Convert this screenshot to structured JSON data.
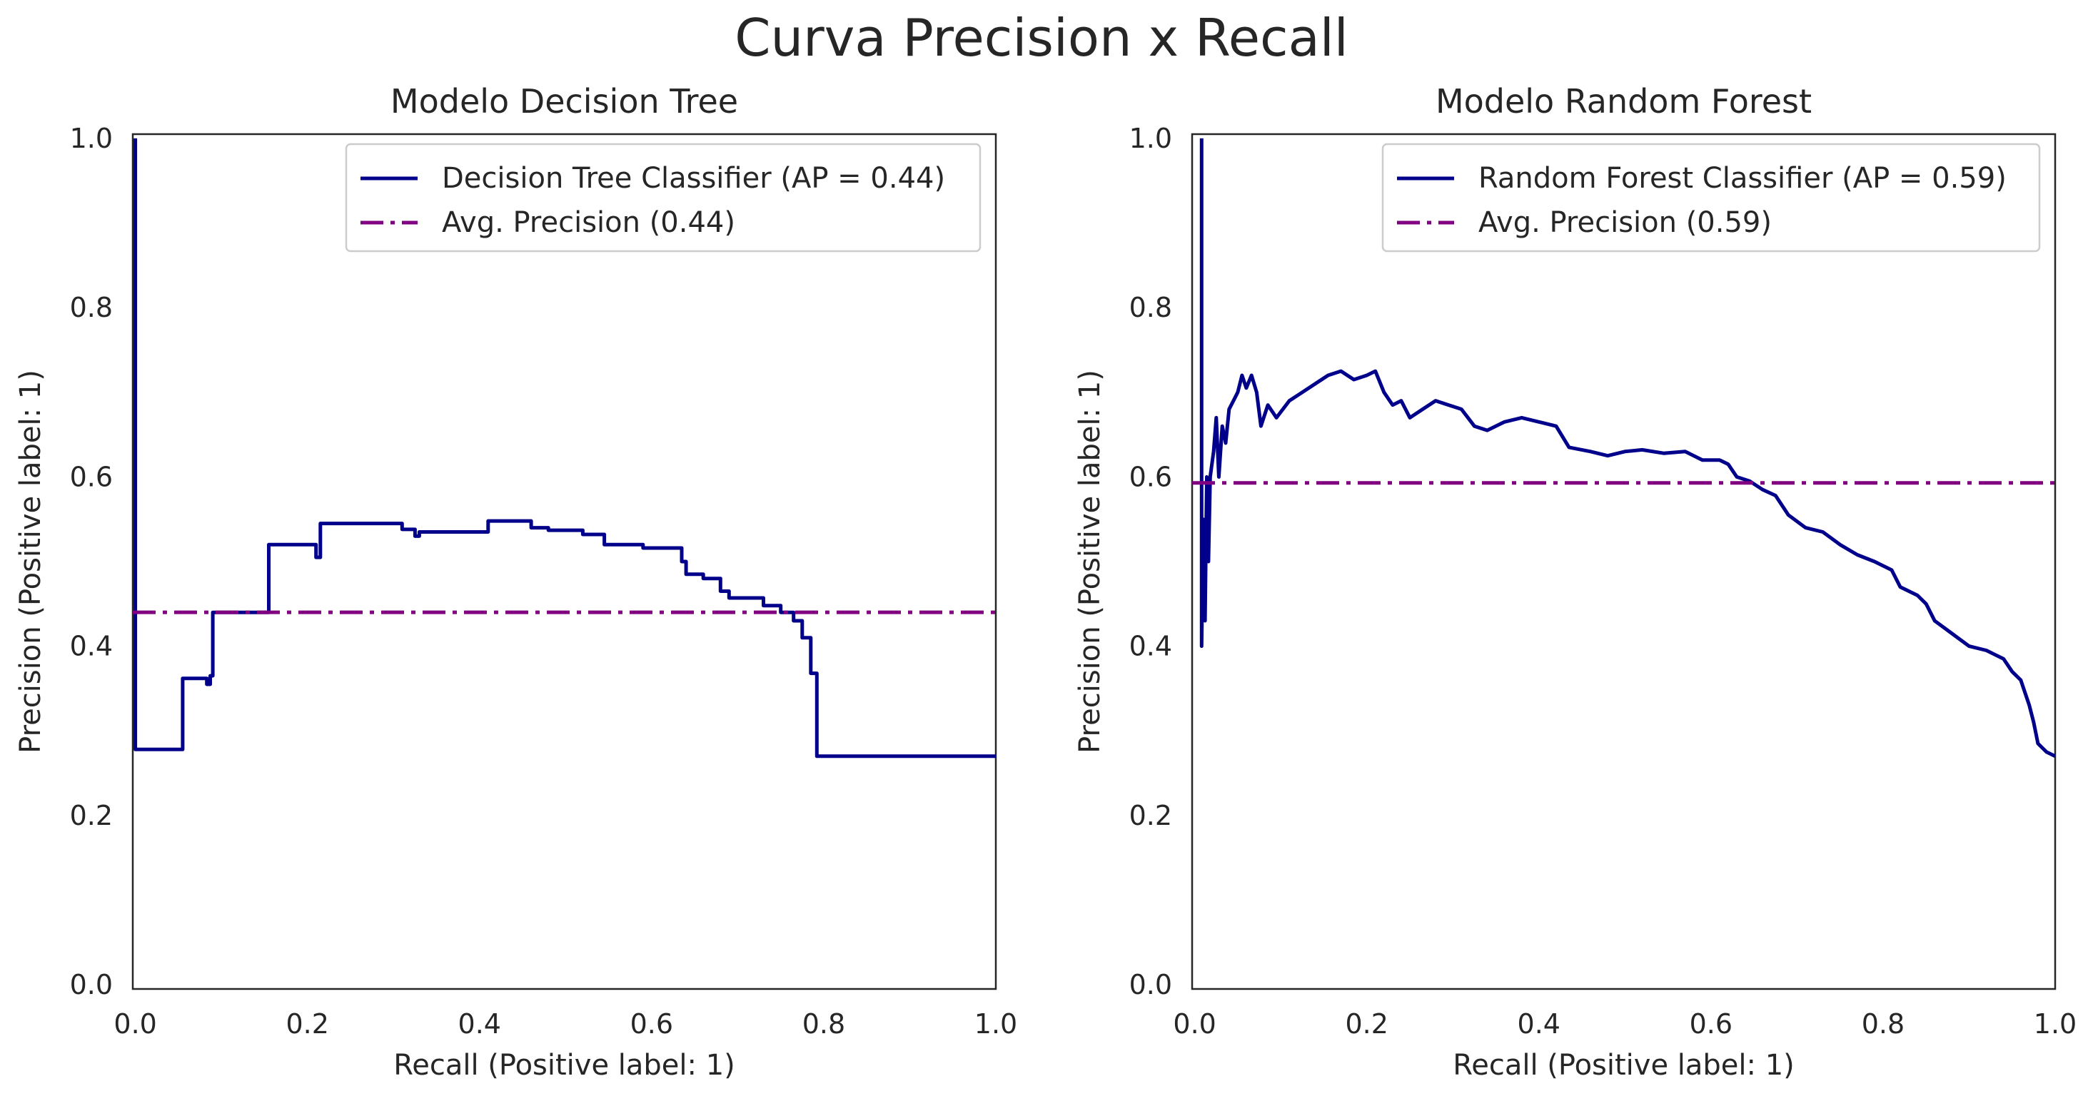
{
  "figure": {
    "suptitle": "Curva Precision x Recall",
    "colors": {
      "curve": "#00008b",
      "avg_line": "#800080",
      "text": "#262626",
      "axes_edge": "#262626",
      "background": "#ffffff"
    }
  },
  "chart_data": [
    {
      "type": "line",
      "title": "Modelo Decision Tree",
      "xlabel": "Recall (Positive label: 1)",
      "ylabel": "Precision (Positive label: 1)",
      "xlim": [
        -0.003,
        1.0
      ],
      "ylim": [
        -0.005,
        1.005
      ],
      "xticks": [
        "0.0",
        "0.2",
        "0.4",
        "0.6",
        "0.8",
        "1.0"
      ],
      "yticks": [
        "0.0",
        "0.2",
        "0.4",
        "0.6",
        "0.8",
        "1.0"
      ],
      "grid": false,
      "legend_position": "upper right",
      "series": [
        {
          "name": "Decision Tree Classifier (AP = 0.44)",
          "step": true,
          "points": [
            [
              0.0,
              1.0
            ],
            [
              0.0,
              0.278
            ],
            [
              0.055,
              0.278
            ],
            [
              0.055,
              0.362
            ],
            [
              0.083,
              0.362
            ],
            [
              0.083,
              0.355
            ],
            [
              0.087,
              0.355
            ],
            [
              0.087,
              0.365
            ],
            [
              0.09,
              0.365
            ],
            [
              0.09,
              0.44
            ],
            [
              0.155,
              0.44
            ],
            [
              0.155,
              0.52
            ],
            [
              0.21,
              0.52
            ],
            [
              0.21,
              0.505
            ],
            [
              0.215,
              0.505
            ],
            [
              0.215,
              0.545
            ],
            [
              0.31,
              0.545
            ],
            [
              0.31,
              0.538
            ],
            [
              0.325,
              0.538
            ],
            [
              0.325,
              0.53
            ],
            [
              0.33,
              0.53
            ],
            [
              0.33,
              0.535
            ],
            [
              0.41,
              0.535
            ],
            [
              0.41,
              0.548
            ],
            [
              0.46,
              0.548
            ],
            [
              0.46,
              0.54
            ],
            [
              0.48,
              0.54
            ],
            [
              0.48,
              0.537
            ],
            [
              0.52,
              0.537
            ],
            [
              0.52,
              0.532
            ],
            [
              0.545,
              0.532
            ],
            [
              0.545,
              0.52
            ],
            [
              0.59,
              0.52
            ],
            [
              0.59,
              0.516
            ],
            [
              0.635,
              0.516
            ],
            [
              0.635,
              0.5
            ],
            [
              0.64,
              0.5
            ],
            [
              0.64,
              0.485
            ],
            [
              0.66,
              0.485
            ],
            [
              0.66,
              0.48
            ],
            [
              0.68,
              0.48
            ],
            [
              0.68,
              0.465
            ],
            [
              0.69,
              0.465
            ],
            [
              0.69,
              0.457
            ],
            [
              0.73,
              0.457
            ],
            [
              0.73,
              0.448
            ],
            [
              0.75,
              0.448
            ],
            [
              0.75,
              0.44
            ],
            [
              0.765,
              0.44
            ],
            [
              0.765,
              0.43
            ],
            [
              0.775,
              0.43
            ],
            [
              0.775,
              0.41
            ],
            [
              0.785,
              0.41
            ],
            [
              0.785,
              0.368
            ],
            [
              0.792,
              0.368
            ],
            [
              0.792,
              0.27
            ],
            [
              1.0,
              0.27
            ]
          ]
        },
        {
          "name": "Avg. Precision (0.44)",
          "hline": 0.44,
          "style": "dashdot"
        }
      ]
    },
    {
      "type": "line",
      "title": "Modelo Random Forest",
      "xlabel": "Recall (Positive label: 1)",
      "ylabel": "Precision (Positive label: 1)",
      "xlim": [
        -0.003,
        1.0
      ],
      "ylim": [
        -0.005,
        1.005
      ],
      "xticks": [
        "0.0",
        "0.2",
        "0.4",
        "0.6",
        "0.8",
        "1.0"
      ],
      "yticks": [
        "0.0",
        "0.2",
        "0.4",
        "0.6",
        "0.8",
        "1.0"
      ],
      "grid": false,
      "legend_position": "upper right",
      "series": [
        {
          "name": "Random Forest Classifier (AP = 0.59)",
          "step": false,
          "points": [
            [
              0.008,
              1.0
            ],
            [
              0.008,
              0.4
            ],
            [
              0.01,
              0.55
            ],
            [
              0.012,
              0.43
            ],
            [
              0.014,
              0.6
            ],
            [
              0.016,
              0.5
            ],
            [
              0.018,
              0.6
            ],
            [
              0.022,
              0.63
            ],
            [
              0.025,
              0.67
            ],
            [
              0.028,
              0.6
            ],
            [
              0.032,
              0.66
            ],
            [
              0.036,
              0.64
            ],
            [
              0.04,
              0.68
            ],
            [
              0.045,
              0.69
            ],
            [
              0.05,
              0.7
            ],
            [
              0.055,
              0.72
            ],
            [
              0.06,
              0.705
            ],
            [
              0.066,
              0.72
            ],
            [
              0.072,
              0.7
            ],
            [
              0.077,
              0.66
            ],
            [
              0.085,
              0.685
            ],
            [
              0.095,
              0.67
            ],
            [
              0.11,
              0.69
            ],
            [
              0.125,
              0.7
            ],
            [
              0.14,
              0.71
            ],
            [
              0.155,
              0.72
            ],
            [
              0.17,
              0.725
            ],
            [
              0.185,
              0.715
            ],
            [
              0.2,
              0.72
            ],
            [
              0.21,
              0.725
            ],
            [
              0.22,
              0.7
            ],
            [
              0.23,
              0.685
            ],
            [
              0.24,
              0.69
            ],
            [
              0.25,
              0.67
            ],
            [
              0.265,
              0.68
            ],
            [
              0.28,
              0.69
            ],
            [
              0.295,
              0.685
            ],
            [
              0.31,
              0.68
            ],
            [
              0.325,
              0.66
            ],
            [
              0.34,
              0.655
            ],
            [
              0.36,
              0.665
            ],
            [
              0.38,
              0.67
            ],
            [
              0.4,
              0.665
            ],
            [
              0.42,
              0.66
            ],
            [
              0.435,
              0.635
            ],
            [
              0.46,
              0.63
            ],
            [
              0.48,
              0.625
            ],
            [
              0.5,
              0.63
            ],
            [
              0.52,
              0.632
            ],
            [
              0.545,
              0.628
            ],
            [
              0.57,
              0.63
            ],
            [
              0.59,
              0.62
            ],
            [
              0.61,
              0.62
            ],
            [
              0.62,
              0.615
            ],
            [
              0.63,
              0.6
            ],
            [
              0.645,
              0.595
            ],
            [
              0.66,
              0.585
            ],
            [
              0.675,
              0.578
            ],
            [
              0.69,
              0.555
            ],
            [
              0.71,
              0.54
            ],
            [
              0.73,
              0.535
            ],
            [
              0.75,
              0.52
            ],
            [
              0.77,
              0.508
            ],
            [
              0.79,
              0.5
            ],
            [
              0.81,
              0.49
            ],
            [
              0.82,
              0.47
            ],
            [
              0.84,
              0.46
            ],
            [
              0.85,
              0.45
            ],
            [
              0.86,
              0.43
            ],
            [
              0.88,
              0.415
            ],
            [
              0.9,
              0.4
            ],
            [
              0.92,
              0.395
            ],
            [
              0.94,
              0.385
            ],
            [
              0.95,
              0.37
            ],
            [
              0.96,
              0.36
            ],
            [
              0.97,
              0.33
            ],
            [
              0.975,
              0.31
            ],
            [
              0.98,
              0.285
            ],
            [
              0.99,
              0.275
            ],
            [
              1.0,
              0.27
            ]
          ]
        },
        {
          "name": "Avg. Precision (0.59)",
          "hline": 0.593,
          "style": "dashdot"
        }
      ]
    }
  ]
}
